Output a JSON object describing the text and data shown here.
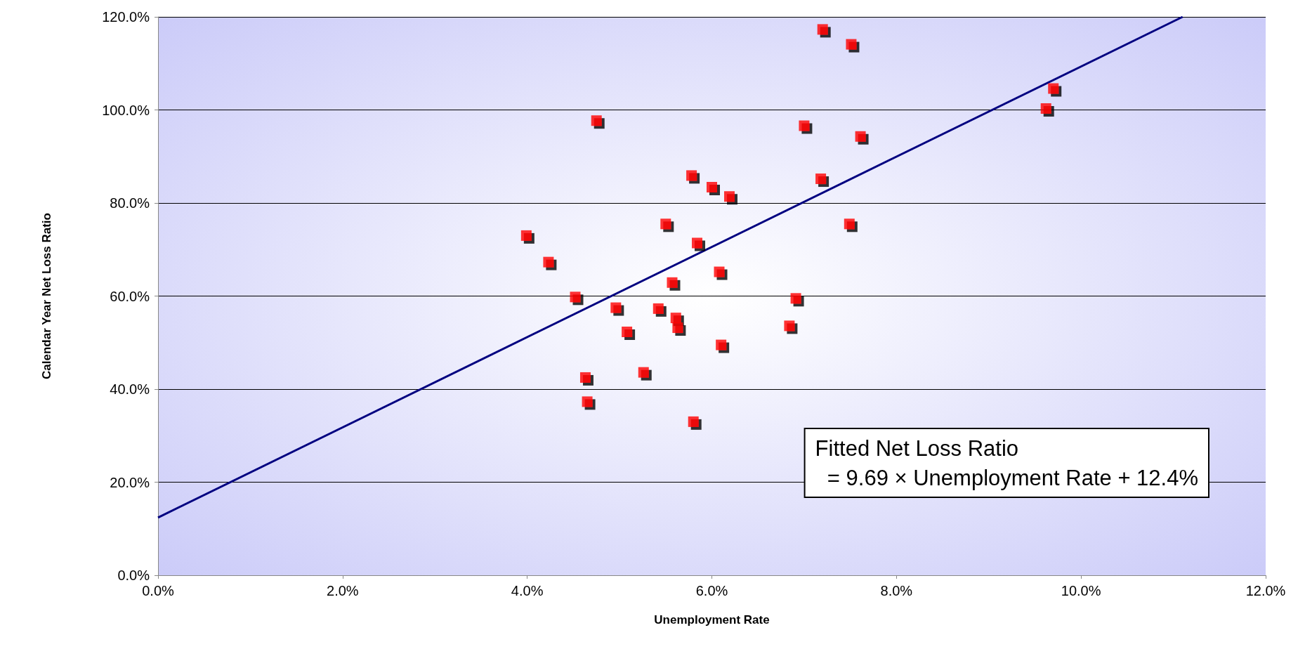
{
  "chart_data": {
    "type": "scatter",
    "xlabel": "Unemployment Rate",
    "ylabel": "Calendar Year Net Loss Ratio",
    "xlim": [
      0,
      12
    ],
    "ylim": [
      0,
      120
    ],
    "xticks": [
      {
        "value": 0,
        "label": "0.0%"
      },
      {
        "value": 2,
        "label": "2.0%"
      },
      {
        "value": 4,
        "label": "4.0%"
      },
      {
        "value": 6,
        "label": "6.0%"
      },
      {
        "value": 8,
        "label": "8.0%"
      },
      {
        "value": 10,
        "label": "10.0%"
      },
      {
        "value": 12,
        "label": "12.0%"
      }
    ],
    "yticks": [
      {
        "value": 0,
        "label": "0.0%"
      },
      {
        "value": 20,
        "label": "20.0%"
      },
      {
        "value": 40,
        "label": "40.0%"
      },
      {
        "value": 60,
        "label": "60.0%"
      },
      {
        "value": 80,
        "label": "80.0%"
      },
      {
        "value": 100,
        "label": "100.0%"
      },
      {
        "value": 120,
        "label": "120.0%"
      }
    ],
    "grid": "y",
    "marker": "square",
    "series": [
      {
        "color": "#ff0000",
        "x": [
          3.99,
          4.23,
          4.52,
          4.63,
          4.65,
          4.75,
          4.96,
          5.08,
          5.26,
          5.42,
          5.5,
          5.57,
          5.61,
          5.63,
          5.78,
          5.8,
          5.84,
          6.0,
          6.08,
          6.1,
          6.19,
          6.84,
          6.91,
          7.0,
          7.18,
          7.2,
          7.49,
          7.51,
          7.61,
          9.62,
          9.7
        ],
        "values": [
          73.0,
          67.3,
          59.8,
          42.5,
          37.3,
          97.7,
          57.5,
          52.3,
          43.6,
          57.3,
          75.5,
          62.9,
          55.3,
          53.2,
          85.9,
          33.0,
          71.4,
          83.4,
          65.2,
          49.5,
          81.4,
          53.6,
          59.5,
          96.6,
          85.2,
          117.3,
          75.5,
          114.1,
          94.3,
          100.3,
          104.6
        ]
      },
      {
        "type": "line",
        "color": "#000080",
        "x": [
          0,
          11.1
        ],
        "values": [
          12.4,
          120
        ],
        "marker": "none",
        "line_style": "solid"
      }
    ],
    "annotations": [
      "Fitted Net Loss Ratio\n  = 9.69 × Unemployment Rate + 12.4%"
    ]
  }
}
